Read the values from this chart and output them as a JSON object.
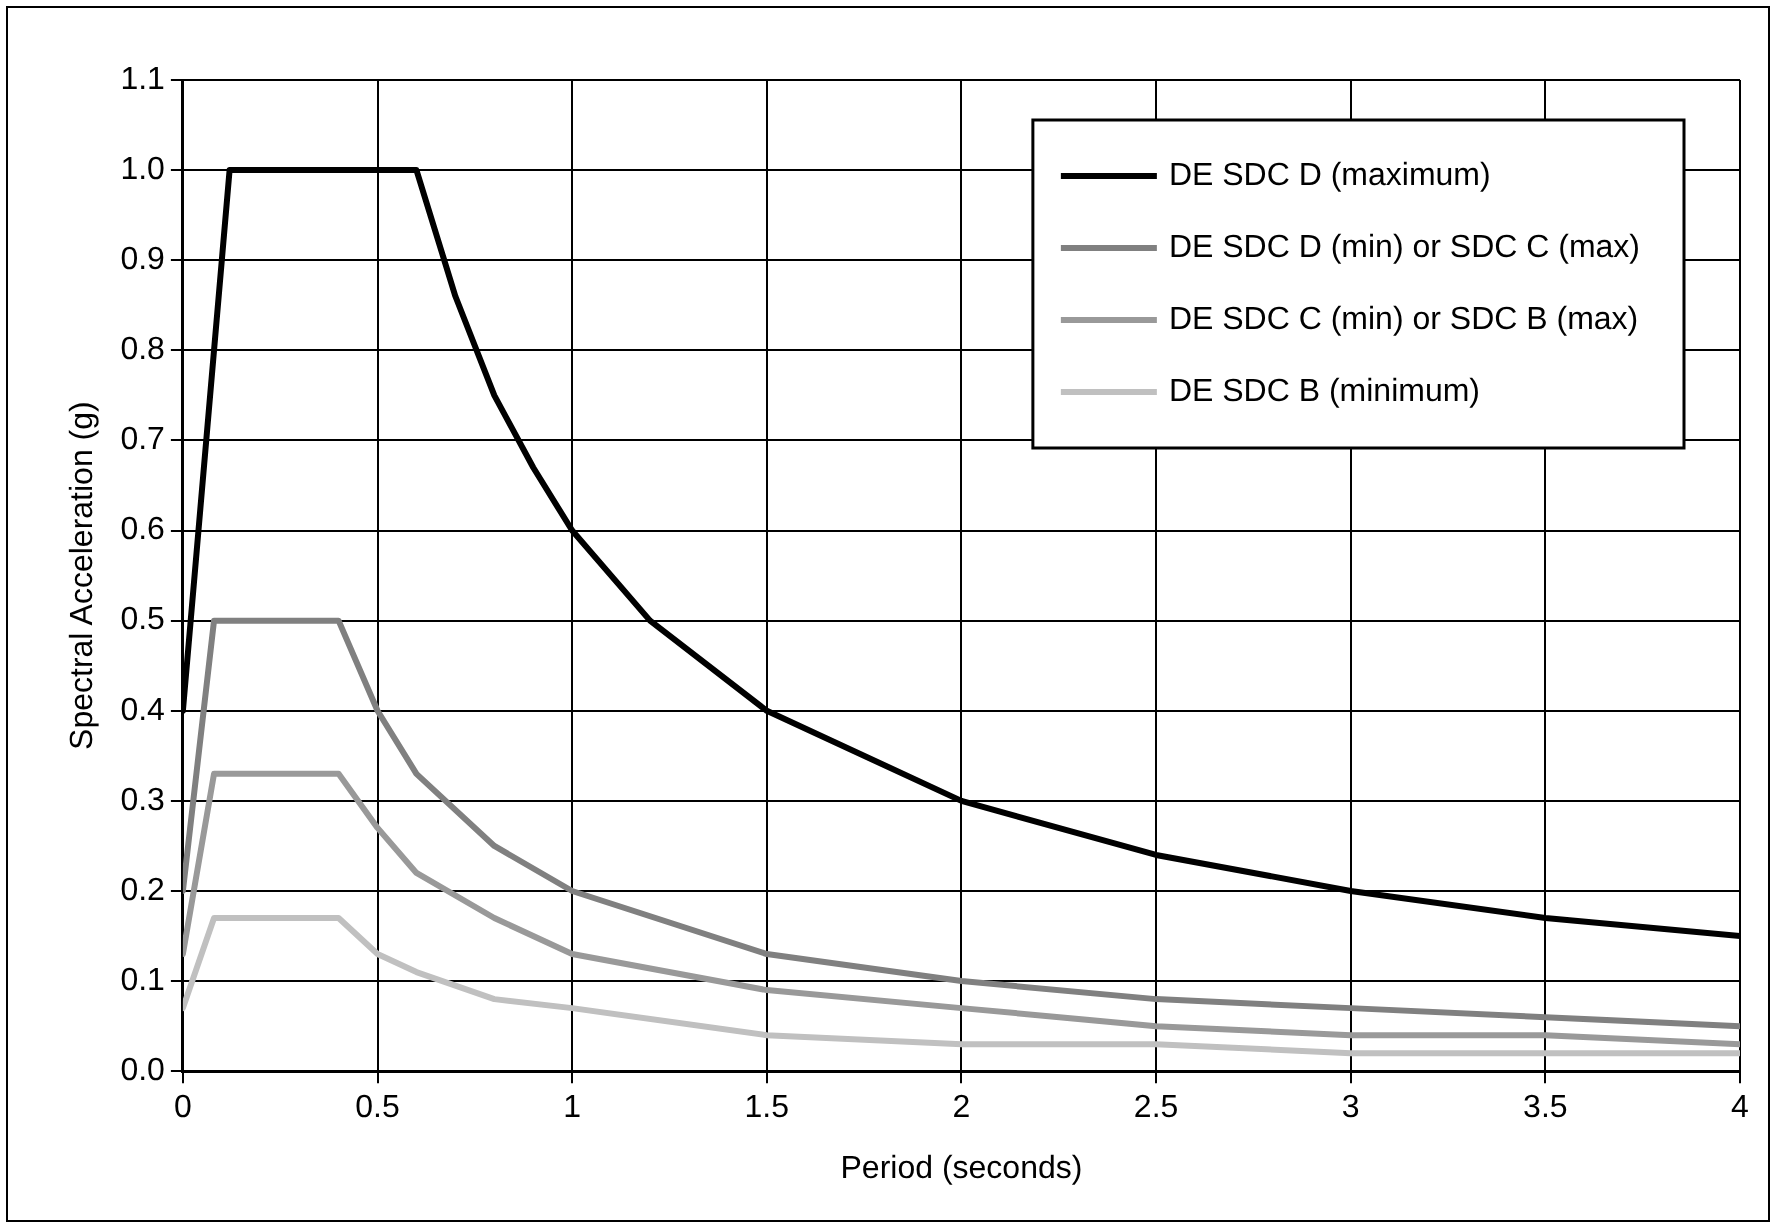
{
  "chart_data": {
    "type": "line",
    "xlabel": "Period (seconds)",
    "ylabel": "Spectral Acceleration (g)",
    "xlim": [
      0,
      4
    ],
    "xticks": [
      0,
      0.5,
      1,
      1.5,
      2,
      2.5,
      3,
      3.5,
      4
    ],
    "ylim": [
      0,
      1.1
    ],
    "yticks": [
      {
        "value": 0,
        "label": "0.0"
      },
      0.1,
      0.2,
      0.3,
      0.4,
      0.5,
      0.6,
      0.7,
      0.8,
      0.9,
      {
        "value": 1,
        "label": "1.0"
      },
      1.1
    ],
    "grid": true,
    "legend": "top right",
    "marker": "none",
    "line_style": "solid",
    "series": [
      {
        "name": "DE SDC D (maximum)",
        "color": "#000000",
        "x": [
          0,
          0.12,
          0.6,
          0.7,
          0.8,
          0.9,
          1,
          1.2,
          1.5,
          2,
          2.5,
          3,
          3.5,
          4
        ],
        "values": [
          0.4,
          1,
          1,
          0.86,
          0.75,
          0.67,
          0.6,
          0.5,
          0.4,
          0.3,
          0.24,
          0.2,
          0.17,
          0.15
        ]
      },
      {
        "name": "DE SDC D (min) or SDC C (max)",
        "color": "#808080",
        "x": [
          0,
          0.08,
          0.4,
          0.5,
          0.6,
          0.8,
          1,
          1.5,
          2,
          2.5,
          3,
          3.5,
          4
        ],
        "values": [
          0.2,
          0.5,
          0.5,
          0.4,
          0.33,
          0.25,
          0.2,
          0.13,
          0.1,
          0.08,
          0.07,
          0.06,
          0.05
        ]
      },
      {
        "name": "DE SDC C (min) or SDC B (max)",
        "color": "#999999",
        "x": [
          0,
          0.08,
          0.4,
          0.5,
          0.6,
          0.8,
          1,
          1.5,
          2,
          2.5,
          3,
          3.5,
          4
        ],
        "values": [
          0.13,
          0.33,
          0.33,
          0.27,
          0.22,
          0.17,
          0.13,
          0.09,
          0.07,
          0.05,
          0.04,
          0.04,
          0.03
        ]
      },
      {
        "name": "DE SDC B (minimum)",
        "color": "#c0c0c0",
        "x": [
          0,
          0.08,
          0.4,
          0.5,
          0.6,
          0.8,
          1,
          1.5,
          2,
          2.5,
          3,
          3.5,
          4
        ],
        "values": [
          0.07,
          0.17,
          0.17,
          0.13,
          0.11,
          0.08,
          0.07,
          0.04,
          0.03,
          0.03,
          0.02,
          0.02,
          0.02
        ]
      }
    ]
  }
}
